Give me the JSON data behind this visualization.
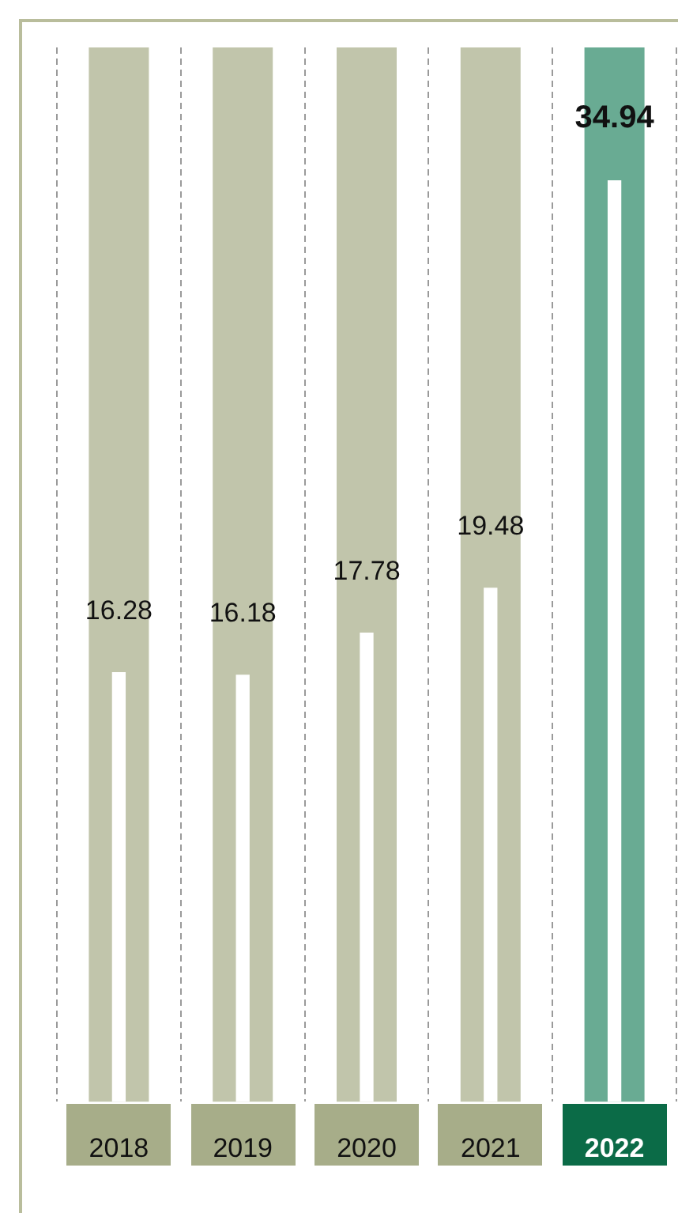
{
  "chart_data": {
    "type": "bar",
    "categories": [
      "2018",
      "2019",
      "2020",
      "2021",
      "2022"
    ],
    "series": [
      {
        "color": "#ffffff",
        "values": [
          16.28,
          16.18,
          17.78,
          19.48,
          34.94
        ]
      }
    ],
    "bands": [
      {
        "axis": "x",
        "from": "2018",
        "to": "2018",
        "color": "#c1c5ab"
      },
      {
        "axis": "x",
        "from": "2019",
        "to": "2019",
        "color": "#c1c5ab"
      },
      {
        "axis": "x",
        "from": "2020",
        "to": "2020",
        "color": "#c1c5ab"
      },
      {
        "axis": "x",
        "from": "2021",
        "to": "2021",
        "color": "#c1c5ab"
      },
      {
        "axis": "x",
        "from": "2022",
        "to": "2022",
        "color": "#69ab93"
      }
    ],
    "ylim": [
      0,
      40
    ],
    "tick_labels": "x",
    "grid": "x",
    "data_labels": true,
    "legend": false
  }
}
